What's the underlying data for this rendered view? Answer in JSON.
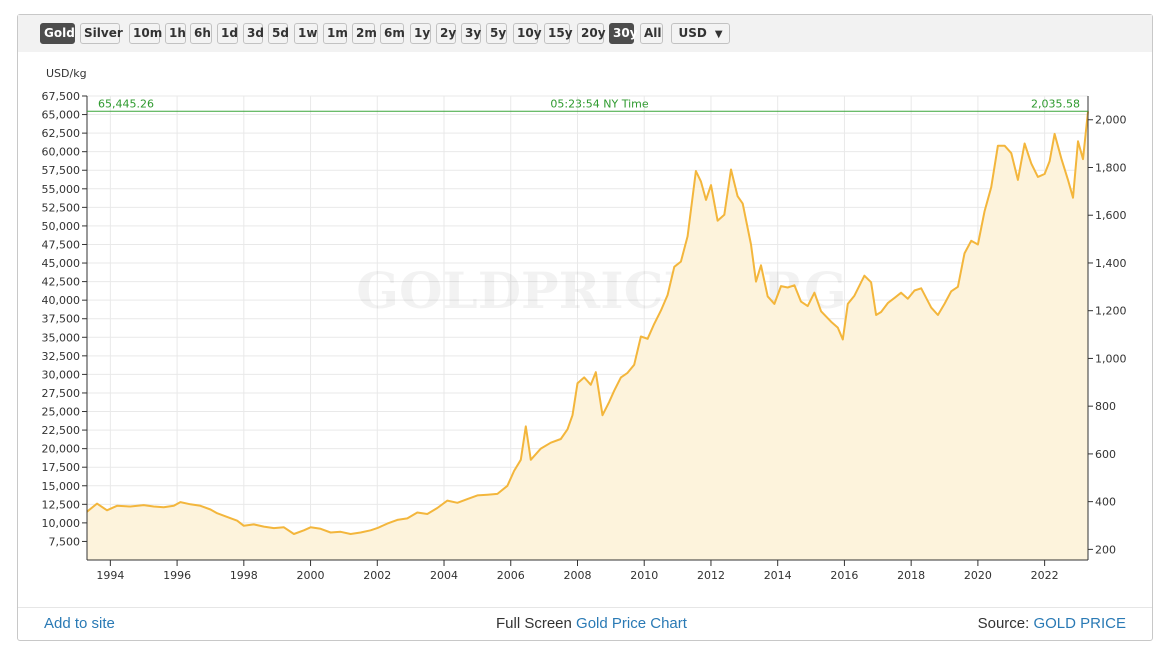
{
  "toolbar": {
    "buttons": [
      "Gold",
      "Silver",
      "10m",
      "1h",
      "6h",
      "1d",
      "3d",
      "5d",
      "1w",
      "1m",
      "2m",
      "6m",
      "1y",
      "2y",
      "3y",
      "5y",
      "10y",
      "15y",
      "20y",
      "30y",
      "All"
    ],
    "active": [
      "Gold",
      "30y"
    ],
    "currency": "USD"
  },
  "footer": {
    "add_to_site": "Add to site",
    "full_screen": "Full Screen",
    "chart_link": "Gold Price Chart",
    "source_label": "Source:",
    "source_link": "GOLD PRICE"
  },
  "colors": {
    "line": "#f3b63c",
    "area": "#fdf3dc",
    "current_line": "#3aa53a",
    "link": "#2a7ab5",
    "active_button": "#4d4d4d"
  },
  "chart_data": {
    "type": "area",
    "watermark": "GOLDPRICE.ORG",
    "ylabel": "USD/kg",
    "time_label": "05:23:54 NY Time",
    "current_left_label": "65,445.26",
    "current_right_label": "2,035.58",
    "current_value_usd_kg": 65445.26,
    "current_value_usd_oz": 2035.58,
    "left_ylim": [
      5000,
      67500
    ],
    "left_ticks": [
      7500,
      10000,
      12500,
      15000,
      17500,
      20000,
      22500,
      25000,
      27500,
      30000,
      32500,
      35000,
      37500,
      40000,
      42500,
      45000,
      47500,
      50000,
      52500,
      55000,
      57500,
      60000,
      62500,
      65000,
      67500
    ],
    "left_tick_labels": [
      "7,500",
      "10,000",
      "12,500",
      "15,000",
      "17,500",
      "20,000",
      "22,500",
      "25,000",
      "27,500",
      "30,000",
      "32,500",
      "35,000",
      "37,500",
      "40,000",
      "42,500",
      "45,000",
      "47,500",
      "50,000",
      "52,500",
      "55,000",
      "57,500",
      "60,000",
      "62,500",
      "65,000",
      "67,500"
    ],
    "right_ylim": [
      155.5,
      2099.5
    ],
    "right_ticks": [
      200,
      400,
      600,
      800,
      1000,
      1200,
      1400,
      1600,
      1800,
      2000
    ],
    "right_tick_labels": [
      "200",
      "400",
      "600",
      "800",
      "1,000",
      "1,200",
      "1,400",
      "1,600",
      "1,800",
      "2,000"
    ],
    "xlim": [
      1993.3,
      2023.3
    ],
    "x_ticks": [
      1994,
      1996,
      1998,
      2000,
      2002,
      2004,
      2006,
      2008,
      2010,
      2012,
      2014,
      2016,
      2018,
      2020,
      2022
    ],
    "x_tick_labels": [
      "1994",
      "1996",
      "1998",
      "2000",
      "2002",
      "2004",
      "2006",
      "2008",
      "2010",
      "2012",
      "2014",
      "2016",
      "2018",
      "2020",
      "2022"
    ],
    "grid": true,
    "series": [
      {
        "values": [
          [
            1993.3,
            11500
          ],
          [
            1993.6,
            12600
          ],
          [
            1993.9,
            11700
          ],
          [
            1994.2,
            12300
          ],
          [
            1994.6,
            12200
          ],
          [
            1995.0,
            12400
          ],
          [
            1995.3,
            12200
          ],
          [
            1995.6,
            12100
          ],
          [
            1995.9,
            12300
          ],
          [
            1996.1,
            12800
          ],
          [
            1996.4,
            12500
          ],
          [
            1996.7,
            12300
          ],
          [
            1997.0,
            11800
          ],
          [
            1997.2,
            11300
          ],
          [
            1997.5,
            10800
          ],
          [
            1997.8,
            10300
          ],
          [
            1998.0,
            9600
          ],
          [
            1998.3,
            9800
          ],
          [
            1998.6,
            9500
          ],
          [
            1998.9,
            9300
          ],
          [
            1999.2,
            9400
          ],
          [
            1999.5,
            8500
          ],
          [
            1999.8,
            9000
          ],
          [
            2000.0,
            9400
          ],
          [
            2000.3,
            9200
          ],
          [
            2000.6,
            8700
          ],
          [
            2000.9,
            8800
          ],
          [
            2001.2,
            8500
          ],
          [
            2001.5,
            8700
          ],
          [
            2001.8,
            9000
          ],
          [
            2002.0,
            9300
          ],
          [
            2002.3,
            9900
          ],
          [
            2002.6,
            10400
          ],
          [
            2002.9,
            10600
          ],
          [
            2003.2,
            11400
          ],
          [
            2003.5,
            11200
          ],
          [
            2003.8,
            12000
          ],
          [
            2004.1,
            13000
          ],
          [
            2004.4,
            12700
          ],
          [
            2004.7,
            13200
          ],
          [
            2005.0,
            13700
          ],
          [
            2005.3,
            13800
          ],
          [
            2005.6,
            13900
          ],
          [
            2005.9,
            15000
          ],
          [
            2006.1,
            17000
          ],
          [
            2006.3,
            18500
          ],
          [
            2006.45,
            23000
          ],
          [
            2006.6,
            18500
          ],
          [
            2006.9,
            20000
          ],
          [
            2007.2,
            20800
          ],
          [
            2007.5,
            21300
          ],
          [
            2007.7,
            22600
          ],
          [
            2007.85,
            24500
          ],
          [
            2008.0,
            28800
          ],
          [
            2008.2,
            29600
          ],
          [
            2008.4,
            28600
          ],
          [
            2008.55,
            30300
          ],
          [
            2008.75,
            24500
          ],
          [
            2008.95,
            26300
          ],
          [
            2009.1,
            27800
          ],
          [
            2009.3,
            29600
          ],
          [
            2009.5,
            30200
          ],
          [
            2009.7,
            31300
          ],
          [
            2009.9,
            35100
          ],
          [
            2010.1,
            34800
          ],
          [
            2010.3,
            36800
          ],
          [
            2010.5,
            38600
          ],
          [
            2010.7,
            40700
          ],
          [
            2010.9,
            44500
          ],
          [
            2011.1,
            45200
          ],
          [
            2011.3,
            48600
          ],
          [
            2011.55,
            57400
          ],
          [
            2011.7,
            56000
          ],
          [
            2011.85,
            53500
          ],
          [
            2012.0,
            55500
          ],
          [
            2012.2,
            50700
          ],
          [
            2012.4,
            51500
          ],
          [
            2012.6,
            57600
          ],
          [
            2012.8,
            54000
          ],
          [
            2012.95,
            53000
          ],
          [
            2013.2,
            47500
          ],
          [
            2013.35,
            42500
          ],
          [
            2013.5,
            44700
          ],
          [
            2013.7,
            40500
          ],
          [
            2013.9,
            39500
          ],
          [
            2014.1,
            41900
          ],
          [
            2014.3,
            41700
          ],
          [
            2014.5,
            42000
          ],
          [
            2014.7,
            39800
          ],
          [
            2014.9,
            39200
          ],
          [
            2015.1,
            41000
          ],
          [
            2015.3,
            38500
          ],
          [
            2015.6,
            37100
          ],
          [
            2015.8,
            36300
          ],
          [
            2015.95,
            34700
          ],
          [
            2016.1,
            39500
          ],
          [
            2016.3,
            40600
          ],
          [
            2016.6,
            43300
          ],
          [
            2016.8,
            42400
          ],
          [
            2016.95,
            38000
          ],
          [
            2017.1,
            38400
          ],
          [
            2017.3,
            39600
          ],
          [
            2017.5,
            40300
          ],
          [
            2017.7,
            41000
          ],
          [
            2017.9,
            40200
          ],
          [
            2018.1,
            41300
          ],
          [
            2018.3,
            41600
          ],
          [
            2018.6,
            39000
          ],
          [
            2018.8,
            38000
          ],
          [
            2019.0,
            39500
          ],
          [
            2019.2,
            41200
          ],
          [
            2019.4,
            41800
          ],
          [
            2019.6,
            46300
          ],
          [
            2019.8,
            48000
          ],
          [
            2020.0,
            47500
          ],
          [
            2020.2,
            52000
          ],
          [
            2020.4,
            55200
          ],
          [
            2020.6,
            60800
          ],
          [
            2020.8,
            60800
          ],
          [
            2021.0,
            59800
          ],
          [
            2021.2,
            56200
          ],
          [
            2021.4,
            61100
          ],
          [
            2021.6,
            58400
          ],
          [
            2021.8,
            56600
          ],
          [
            2022.0,
            57000
          ],
          [
            2022.15,
            58700
          ],
          [
            2022.3,
            62400
          ],
          [
            2022.5,
            59100
          ],
          [
            2022.7,
            56200
          ],
          [
            2022.85,
            53800
          ],
          [
            2023.0,
            61400
          ],
          [
            2023.15,
            59000
          ],
          [
            2023.3,
            65445
          ]
        ]
      }
    ]
  }
}
